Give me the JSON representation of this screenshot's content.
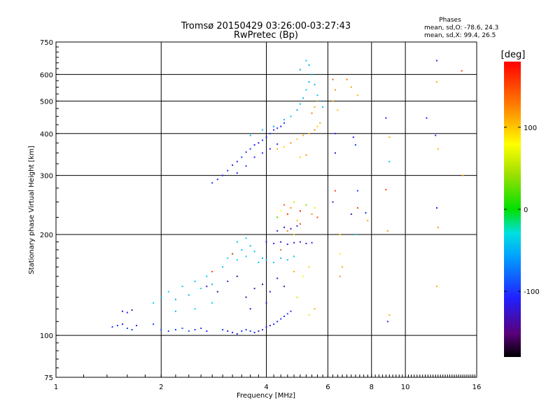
{
  "chart_data": {
    "type": "scatter",
    "title_line1": "Tromsø 20150429 03:26:00-03:27:43",
    "title_line2": "RwPretec (Bp)",
    "phases": {
      "heading": "Phases",
      "line_o": "mean, sd,O: -78.6, 24.3",
      "line_x": "mean, sd,X:  99.4, 26.5"
    },
    "xlabel": "Frequency [MHz]",
    "ylabel": "Stationary phase Virtual Height [km]",
    "xscale": "log",
    "yscale": "log",
    "xlim": [
      1,
      16
    ],
    "ylim": [
      75,
      750
    ],
    "xticks": [
      1,
      2,
      4,
      6,
      8,
      10,
      16
    ],
    "yticks": [
      75,
      100,
      200,
      300,
      400,
      500,
      600,
      750
    ],
    "grid": true,
    "colorbar": {
      "label": "[deg]",
      "range": [
        -180,
        180
      ],
      "ticks": [
        100,
        0,
        -100
      ]
    },
    "series": [
      {
        "points": [
          [
            1.45,
            106,
            -100
          ],
          [
            1.5,
            107,
            -105
          ],
          [
            1.55,
            108,
            -110
          ],
          [
            1.6,
            105,
            -95
          ],
          [
            1.65,
            104,
            -100
          ],
          [
            1.7,
            107,
            -115
          ],
          [
            1.55,
            118,
            -120
          ],
          [
            1.6,
            117,
            -110
          ],
          [
            1.65,
            119,
            -125
          ],
          [
            1.9,
            108,
            -100
          ],
          [
            2.0,
            104,
            -90
          ],
          [
            2.1,
            103,
            -95
          ],
          [
            2.2,
            104,
            -100
          ],
          [
            2.3,
            105,
            -85
          ],
          [
            2.4,
            103,
            -90
          ],
          [
            2.5,
            104,
            -100
          ],
          [
            2.6,
            105,
            -95
          ],
          [
            2.7,
            103,
            -110
          ],
          [
            3.0,
            104,
            -100
          ],
          [
            3.1,
            103,
            -120
          ],
          [
            3.2,
            102,
            -110
          ],
          [
            3.3,
            101,
            -115
          ],
          [
            3.4,
            103,
            -100
          ],
          [
            3.5,
            104,
            -105
          ],
          [
            3.6,
            103,
            -95
          ],
          [
            3.7,
            102,
            -110
          ],
          [
            3.8,
            103,
            -125
          ],
          [
            3.9,
            104,
            -100
          ],
          [
            4.0,
            106,
            -110
          ],
          [
            4.1,
            107,
            -120
          ],
          [
            4.2,
            108,
            -105
          ],
          [
            4.3,
            110,
            -115
          ],
          [
            4.4,
            112,
            -100
          ],
          [
            4.5,
            114,
            -110
          ],
          [
            4.6,
            116,
            -95
          ],
          [
            4.7,
            118,
            -105
          ]
        ]
      },
      {
        "points": [
          [
            1.9,
            125,
            -40
          ],
          [
            2.0,
            130,
            -45
          ],
          [
            2.1,
            135,
            -35
          ],
          [
            2.2,
            128,
            -50
          ],
          [
            2.3,
            140,
            -40
          ],
          [
            2.4,
            132,
            -55
          ],
          [
            2.5,
            145,
            -45
          ],
          [
            2.6,
            138,
            -30
          ],
          [
            2.7,
            150,
            -40
          ],
          [
            2.8,
            142,
            -50
          ],
          [
            2.2,
            118,
            -45
          ],
          [
            2.5,
            120,
            -35
          ],
          [
            2.8,
            125,
            -40
          ],
          [
            3.0,
            160,
            -45
          ],
          [
            3.1,
            170,
            -40
          ],
          [
            3.2,
            175,
            -50
          ],
          [
            3.3,
            168,
            -35
          ],
          [
            3.4,
            180,
            -45
          ],
          [
            3.5,
            172,
            -40
          ],
          [
            3.6,
            185,
            -50
          ],
          [
            3.7,
            178,
            -45
          ],
          [
            3.8,
            165,
            -40
          ],
          [
            3.9,
            170,
            -55
          ],
          [
            4.0,
            168,
            -45
          ],
          [
            4.2,
            165,
            -40
          ],
          [
            4.4,
            170,
            -50
          ],
          [
            4.6,
            168,
            -45
          ],
          [
            4.8,
            172,
            -40
          ],
          [
            3.3,
            190,
            -45
          ],
          [
            3.5,
            195,
            -40
          ]
        ]
      },
      {
        "points": [
          [
            2.7,
            140,
            -130
          ],
          [
            2.9,
            135,
            -140
          ],
          [
            3.1,
            145,
            -125
          ],
          [
            3.3,
            150,
            -135
          ],
          [
            3.5,
            130,
            -145
          ],
          [
            3.7,
            138,
            -130
          ],
          [
            3.9,
            142,
            -140
          ],
          [
            4.1,
            135,
            -125
          ],
          [
            4.3,
            148,
            -135
          ],
          [
            4.5,
            140,
            -130
          ],
          [
            4.0,
            190,
            -120
          ],
          [
            4.2,
            188,
            -115
          ],
          [
            4.4,
            190,
            -125
          ],
          [
            4.6,
            187,
            -110
          ],
          [
            4.8,
            189,
            -120
          ],
          [
            5.0,
            190,
            -115
          ],
          [
            5.2,
            188,
            -125
          ],
          [
            5.4,
            189,
            -110
          ],
          [
            4.3,
            205,
            -130
          ],
          [
            4.5,
            210,
            -125
          ],
          [
            4.7,
            208,
            -135
          ],
          [
            4.9,
            212,
            -120
          ],
          [
            3.6,
            120,
            -135
          ],
          [
            4.0,
            125,
            -130
          ]
        ]
      },
      {
        "points": [
          [
            4.3,
            225,
            20
          ],
          [
            4.4,
            235,
            80
          ],
          [
            4.5,
            245,
            140
          ],
          [
            4.6,
            230,
            160
          ],
          [
            4.7,
            240,
            120
          ],
          [
            4.8,
            250,
            60
          ],
          [
            4.9,
            220,
            100
          ],
          [
            5.0,
            235,
            170
          ],
          [
            5.2,
            245,
            40
          ],
          [
            5.4,
            230,
            120
          ],
          [
            5.5,
            240,
            90
          ],
          [
            5.6,
            225,
            150
          ],
          [
            4.6,
            205,
            130
          ],
          [
            4.8,
            200,
            100
          ],
          [
            5.0,
            215,
            150
          ],
          [
            4.4,
            180,
            140
          ],
          [
            4.8,
            155,
            110
          ],
          [
            5.1,
            150,
            80
          ],
          [
            5.3,
            160,
            100
          ],
          [
            5.5,
            120,
            110
          ],
          [
            5.3,
            115,
            90
          ],
          [
            4.9,
            130,
            60
          ],
          [
            3.2,
            175,
            150
          ],
          [
            2.8,
            155,
            150
          ]
        ]
      },
      {
        "points": [
          [
            2.8,
            285,
            -100
          ],
          [
            2.9,
            292,
            -110
          ],
          [
            3.0,
            300,
            -115
          ],
          [
            3.1,
            310,
            -105
          ],
          [
            3.2,
            322,
            -120
          ],
          [
            3.3,
            330,
            -110
          ],
          [
            3.4,
            340,
            -100
          ],
          [
            3.5,
            352,
            -115
          ],
          [
            3.6,
            360,
            -105
          ],
          [
            3.7,
            370,
            -110
          ],
          [
            3.8,
            375,
            -120
          ],
          [
            3.9,
            382,
            -100
          ],
          [
            4.0,
            390,
            -110
          ],
          [
            4.1,
            400,
            -105
          ],
          [
            4.2,
            410,
            -115
          ],
          [
            4.3,
            415,
            -100
          ],
          [
            4.4,
            420,
            -110
          ],
          [
            4.5,
            430,
            -105
          ],
          [
            3.3,
            305,
            -110
          ],
          [
            3.5,
            320,
            -100
          ],
          [
            3.7,
            340,
            -115
          ],
          [
            3.9,
            350,
            -105
          ],
          [
            4.1,
            360,
            -110
          ],
          [
            4.3,
            372,
            -120
          ]
        ]
      },
      {
        "points": [
          [
            3.6,
            395,
            -55
          ],
          [
            3.9,
            410,
            -45
          ],
          [
            4.2,
            420,
            -60
          ],
          [
            4.5,
            440,
            -50
          ],
          [
            4.7,
            450,
            -40
          ],
          [
            4.9,
            470,
            -55
          ],
          [
            5.0,
            490,
            -45
          ],
          [
            5.1,
            510,
            -50
          ],
          [
            5.2,
            540,
            -40
          ],
          [
            5.3,
            570,
            -55
          ],
          [
            5.4,
            600,
            -45
          ],
          [
            5.3,
            640,
            -50
          ],
          [
            5.2,
            660,
            -40
          ],
          [
            5.0,
            620,
            -60
          ],
          [
            5.5,
            560,
            -50
          ],
          [
            5.6,
            520,
            -45
          ],
          [
            5.7,
            500,
            -55
          ],
          [
            5.8,
            480,
            -50
          ]
        ]
      },
      {
        "points": [
          [
            4.3,
            360,
            110
          ],
          [
            4.5,
            365,
            95
          ],
          [
            4.7,
            375,
            120
          ],
          [
            4.9,
            385,
            100
          ],
          [
            5.1,
            395,
            115
          ],
          [
            5.3,
            400,
            105
          ],
          [
            5.5,
            410,
            120
          ],
          [
            5.6,
            420,
            100
          ],
          [
            5.7,
            430,
            110
          ],
          [
            5.4,
            460,
            130
          ],
          [
            5.5,
            480,
            115
          ],
          [
            5.6,
            500,
            120
          ],
          [
            5.0,
            340,
            100
          ],
          [
            5.2,
            345,
            120
          ]
        ]
      },
      {
        "points": [
          [
            6.2,
            580,
            140
          ],
          [
            6.3,
            540,
            120
          ],
          [
            6.2,
            500,
            110
          ],
          [
            6.4,
            470,
            100
          ],
          [
            6.3,
            400,
            -110
          ],
          [
            6.3,
            350,
            -130
          ],
          [
            6.3,
            270,
            150
          ],
          [
            6.2,
            250,
            -120
          ],
          [
            6.5,
            200,
            100
          ],
          [
            6.5,
            175,
            90
          ],
          [
            6.6,
            160,
            110
          ],
          [
            6.5,
            150,
            120
          ],
          [
            6.8,
            580,
            130
          ],
          [
            7.0,
            550,
            115
          ],
          [
            7.3,
            520,
            105
          ],
          [
            7.1,
            390,
            -110
          ],
          [
            7.2,
            370,
            -100
          ],
          [
            7.3,
            270,
            -95
          ],
          [
            7.3,
            240,
            150
          ],
          [
            7.0,
            230,
            -120
          ],
          [
            7.2,
            200,
            -40
          ],
          [
            7.7,
            232,
            -110
          ],
          [
            7.8,
            220,
            110
          ],
          [
            8.8,
            272,
            150
          ],
          [
            8.9,
            205,
            120
          ],
          [
            8.9,
            110,
            -110
          ],
          [
            9.0,
            115,
            110
          ],
          [
            9.0,
            390,
            110
          ],
          [
            8.8,
            445,
            -110
          ],
          [
            9.0,
            330,
            -40
          ],
          [
            11.5,
            445,
            -110
          ],
          [
            12.3,
            660,
            -110
          ],
          [
            12.3,
            570,
            110
          ],
          [
            12.2,
            395,
            -110
          ],
          [
            12.4,
            360,
            110
          ],
          [
            12.3,
            240,
            -110
          ],
          [
            12.4,
            210,
            120
          ],
          [
            12.3,
            140,
            110
          ],
          [
            14.5,
            615,
            150
          ],
          [
            14.6,
            300,
            110
          ]
        ]
      }
    ]
  }
}
